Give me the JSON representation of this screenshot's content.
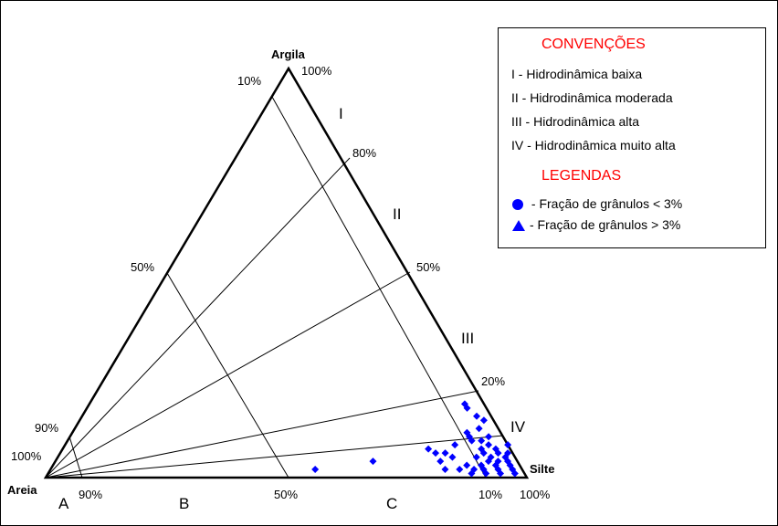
{
  "vertices": {
    "top": "Argila",
    "left": "Areia",
    "right": "Silte"
  },
  "right_edge_ticks": [
    "100%",
    "80%",
    "50%",
    "20%",
    "10%"
  ],
  "left_edge_ticks": [
    "10%",
    "50%",
    "90%",
    "100%"
  ],
  "bottom_edge_ticks": [
    "90%",
    "50%",
    "100%"
  ],
  "regions": [
    "I",
    "II",
    "III",
    "IV"
  ],
  "bottom_regions": [
    "A",
    "B",
    "C"
  ],
  "legend": {
    "conventions_title": "CONVENÇÕES",
    "conventions": [
      "I - Hidrodinâmica baixa",
      "II - Hidrodinâmica moderada",
      "III - Hidrodinâmica alta",
      "IV - Hidrodinâmica muito alta"
    ],
    "legend_title": "LEGENDAS",
    "symbols": [
      {
        "shape": "circle",
        "label": " - Fração de grânulos < 3%"
      },
      {
        "shape": "triangle",
        "label": "- Fração de grânulos > 3%"
      }
    ]
  },
  "colors": {
    "points": "#0000ff",
    "legend_titles": "#ff0000",
    "lines": "#000000"
  },
  "samples": {
    "symbol": "diamond",
    "comment_units": "fractions: clay, silt",
    "points": [
      [
        0.18,
        0.78
      ],
      [
        0.17,
        0.79
      ],
      [
        0.15,
        0.82
      ],
      [
        0.12,
        0.84
      ],
      [
        0.14,
        0.84
      ],
      [
        0.11,
        0.82
      ],
      [
        0.1,
        0.87
      ],
      [
        0.09,
        0.86
      ],
      [
        0.1,
        0.83
      ],
      [
        0.08,
        0.88
      ],
      [
        0.07,
        0.9
      ],
      [
        0.06,
        0.91
      ],
      [
        0.06,
        0.88
      ],
      [
        0.05,
        0.9
      ],
      [
        0.05,
        0.93
      ],
      [
        0.04,
        0.92
      ],
      [
        0.04,
        0.9
      ],
      [
        0.03,
        0.95
      ],
      [
        0.03,
        0.92
      ],
      [
        0.03,
        0.89
      ],
      [
        0.02,
        0.96
      ],
      [
        0.02,
        0.93
      ],
      [
        0.02,
        0.9
      ],
      [
        0.01,
        0.97
      ],
      [
        0.01,
        0.94
      ],
      [
        0.01,
        0.91
      ],
      [
        0.04,
        0.94
      ],
      [
        0.06,
        0.93
      ],
      [
        0.08,
        0.92
      ],
      [
        0.07,
        0.87
      ],
      [
        0.09,
        0.84
      ],
      [
        0.05,
        0.87
      ],
      [
        0.02,
        0.88
      ],
      [
        0.03,
        0.86
      ],
      [
        0.01,
        0.88
      ],
      [
        0.08,
        0.81
      ],
      [
        0.06,
        0.78
      ],
      [
        0.04,
        0.8
      ],
      [
        0.02,
        0.82
      ],
      [
        0.05,
        0.82
      ],
      [
        0.04,
        0.66
      ],
      [
        0.02,
        0.55
      ],
      [
        0.07,
        0.76
      ],
      [
        0.06,
        0.8
      ],
      [
        0.02,
        0.85
      ]
    ]
  }
}
